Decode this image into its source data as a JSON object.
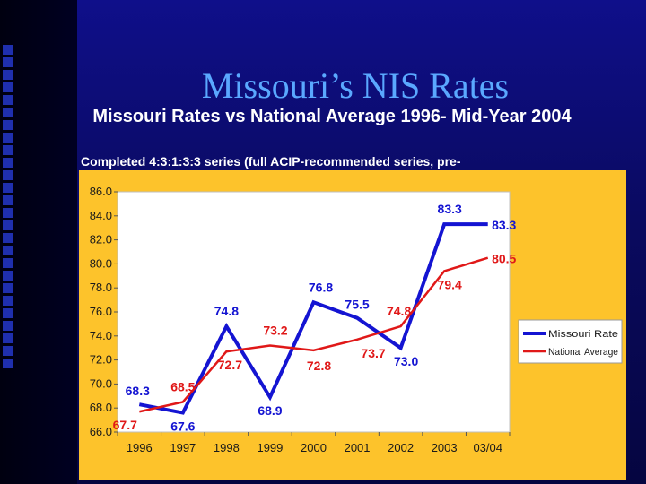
{
  "slide": {
    "title": "Missouri’s NIS Rates",
    "subtitle": "Missouri Rates vs National Average 1996- Mid-Year 2004",
    "subtitle2": "Completed 4:3:1:3:3 series (full ACIP-recommended series, pre-"
  },
  "chart_data": {
    "type": "line",
    "categories": [
      "1996",
      "1997",
      "1998",
      "1999",
      "2000",
      "2001",
      "2002",
      "2003",
      "03/04"
    ],
    "ylim": [
      66.0,
      86.0
    ],
    "yticks": [
      "66.0",
      "68.0",
      "70.0",
      "72.0",
      "74.0",
      "76.0",
      "78.0",
      "80.0",
      "82.0",
      "84.0",
      "86.0"
    ],
    "legend_position": "right",
    "grid": false,
    "series": [
      {
        "name": "Missouri Rate",
        "color": "#1414d2",
        "values": [
          68.3,
          67.6,
          74.8,
          68.9,
          76.8,
          75.5,
          73.0,
          83.3,
          83.3
        ],
        "labels": [
          "68.3",
          "67.6",
          "74.8",
          "68.9",
          "76.8",
          "75.5",
          "73.0",
          "83.3",
          "83.3"
        ]
      },
      {
        "name": "National Average",
        "color": "#e01818",
        "values": [
          67.7,
          68.5,
          72.7,
          73.2,
          72.8,
          73.7,
          74.8,
          79.4,
          80.5
        ],
        "labels": [
          "67.7",
          "68.5",
          "72.7",
          "73.2",
          "72.8",
          "73.7",
          "74.8",
          "79.4",
          "80.5"
        ]
      }
    ]
  }
}
